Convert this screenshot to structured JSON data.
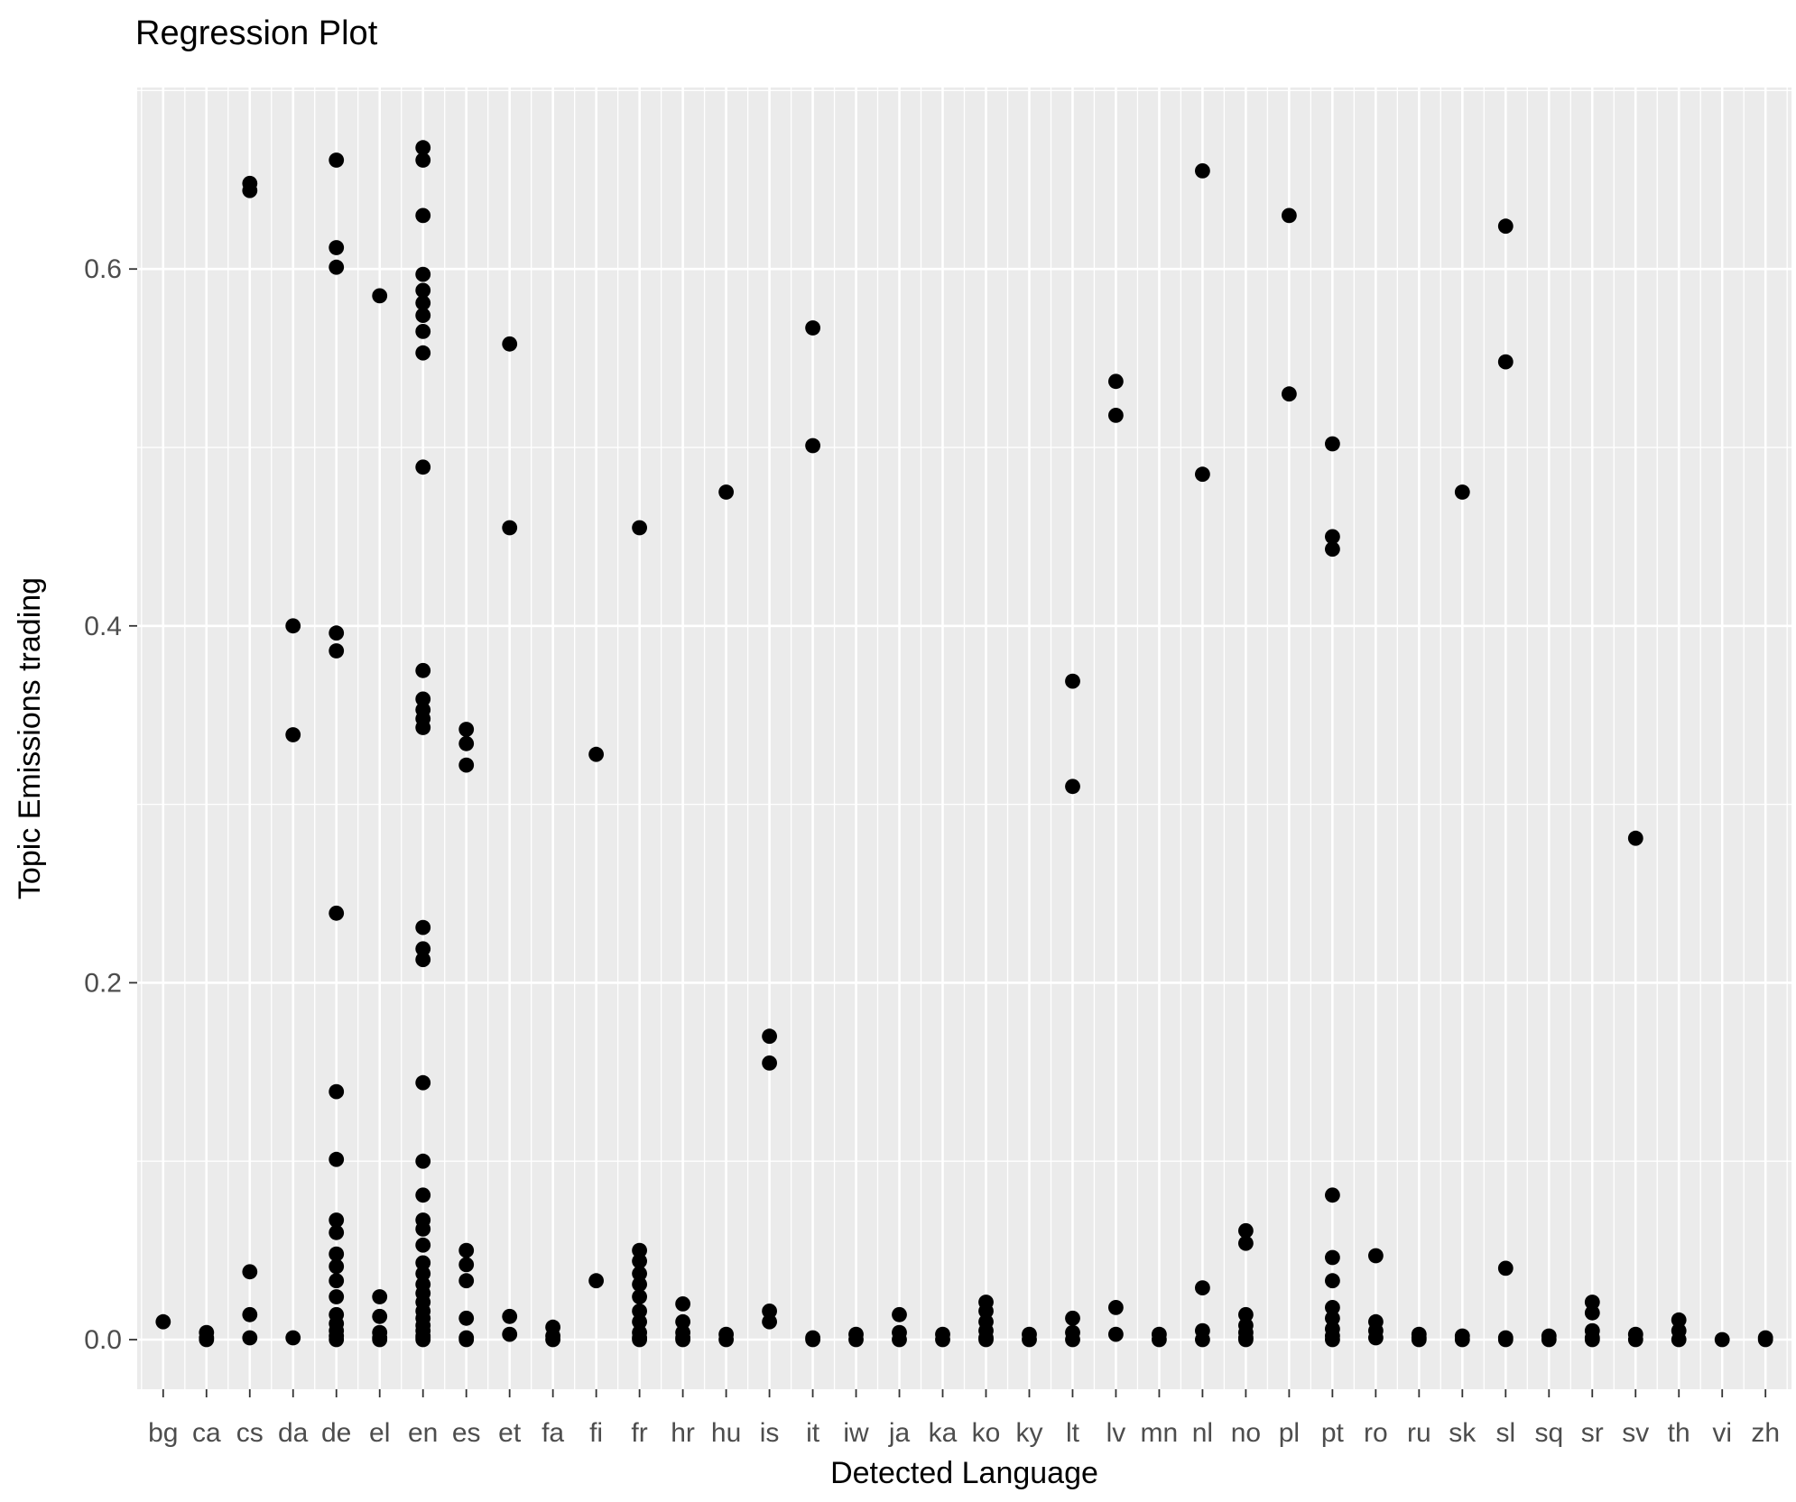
{
  "chart_data": {
    "type": "scatter",
    "title": "Regression Plot",
    "xlabel": "Detected Language",
    "ylabel": "Topic Emissions trading",
    "legend": false,
    "grid": true,
    "ylim": [
      -0.028,
      0.702
    ],
    "y_ticks": [
      0.0,
      0.2,
      0.4,
      0.6
    ],
    "y_minor_ticks": [
      0.1,
      0.3,
      0.5,
      0.7
    ],
    "colors": {
      "panel": "#EBEBEB",
      "grid": "#FFFFFF",
      "point": "#000000",
      "tick_label": "#4D4D4D",
      "tick_mark": "#333333"
    },
    "categories": [
      "bg",
      "ca",
      "cs",
      "da",
      "de",
      "el",
      "en",
      "es",
      "et",
      "fa",
      "fi",
      "fr",
      "hr",
      "hu",
      "is",
      "it",
      "iw",
      "ja",
      "ka",
      "ko",
      "ky",
      "lt",
      "lv",
      "mn",
      "nl",
      "no",
      "pl",
      "pt",
      "ro",
      "ru",
      "sk",
      "sl",
      "sq",
      "sr",
      "sv",
      "th",
      "vi",
      "zh"
    ],
    "points_by_category": {
      "bg": [
        0.01
      ],
      "ca": [
        0.004,
        0.001,
        0.0
      ],
      "cs": [
        0.648,
        0.644,
        0.038,
        0.014,
        0.001
      ],
      "da": [
        0.4,
        0.339,
        0.001
      ],
      "de": [
        0.661,
        0.612,
        0.601,
        0.396,
        0.386,
        0.239,
        0.139,
        0.101,
        0.067,
        0.06,
        0.048,
        0.041,
        0.033,
        0.024,
        0.014,
        0.009,
        0.005,
        0.002,
        0.0
      ],
      "el": [
        0.585,
        0.024,
        0.013,
        0.004,
        0.001,
        0.0
      ],
      "en": [
        0.668,
        0.661,
        0.63,
        0.597,
        0.588,
        0.581,
        0.574,
        0.565,
        0.553,
        0.489,
        0.375,
        0.359,
        0.353,
        0.348,
        0.343,
        0.231,
        0.219,
        0.213,
        0.144,
        0.1,
        0.081,
        0.067,
        0.062,
        0.053,
        0.043,
        0.037,
        0.031,
        0.026,
        0.021,
        0.016,
        0.012,
        0.008,
        0.005,
        0.002,
        0.001,
        0.0
      ],
      "es": [
        0.342,
        0.334,
        0.322,
        0.05,
        0.042,
        0.033,
        0.012,
        0.001,
        0.0
      ],
      "et": [
        0.558,
        0.455,
        0.013,
        0.003
      ],
      "fa": [
        0.007,
        0.002,
        0.0
      ],
      "fi": [
        0.328,
        0.033
      ],
      "fr": [
        0.455,
        0.05,
        0.044,
        0.037,
        0.031,
        0.024,
        0.016,
        0.01,
        0.004,
        0.001,
        0.0
      ],
      "hr": [
        0.02,
        0.01,
        0.004,
        0.001,
        0.0
      ],
      "hu": [
        0.475,
        0.003,
        0.0
      ],
      "is": [
        0.17,
        0.155,
        0.016,
        0.01
      ],
      "it": [
        0.567,
        0.501,
        0.001,
        0.0
      ],
      "iw": [
        0.003,
        0.0
      ],
      "ja": [
        0.014,
        0.004,
        0.0
      ],
      "ka": [
        0.003,
        0.0
      ],
      "ko": [
        0.021,
        0.016,
        0.01,
        0.005,
        0.001,
        0.0
      ],
      "ky": [
        0.003,
        0.0
      ],
      "lt": [
        0.369,
        0.31,
        0.012,
        0.004,
        0.0
      ],
      "lv": [
        0.537,
        0.518,
        0.018,
        0.003
      ],
      "mn": [
        0.003,
        0.0
      ],
      "nl": [
        0.655,
        0.485,
        0.029,
        0.005,
        0.0
      ],
      "no": [
        0.061,
        0.054,
        0.014,
        0.008,
        0.004,
        0.001,
        0.0
      ],
      "pl": [
        0.63,
        0.53
      ],
      "pt": [
        0.502,
        0.45,
        0.443,
        0.081,
        0.046,
        0.033,
        0.018,
        0.012,
        0.006,
        0.002,
        0.0
      ],
      "ro": [
        0.047,
        0.01,
        0.005,
        0.001
      ],
      "ru": [
        0.003,
        0.001,
        0.0
      ],
      "sk": [
        0.475,
        0.002,
        0.0
      ],
      "sl": [
        0.624,
        0.548,
        0.04,
        0.001,
        0.0
      ],
      "sq": [
        0.002,
        0.0
      ],
      "sr": [
        0.021,
        0.015,
        0.005,
        0.001,
        0.0
      ],
      "sv": [
        0.281,
        0.003,
        0.0
      ],
      "th": [
        0.011,
        0.005,
        0.0
      ],
      "vi": [
        0.0
      ],
      "zh": [
        0.001,
        0.0
      ]
    }
  }
}
